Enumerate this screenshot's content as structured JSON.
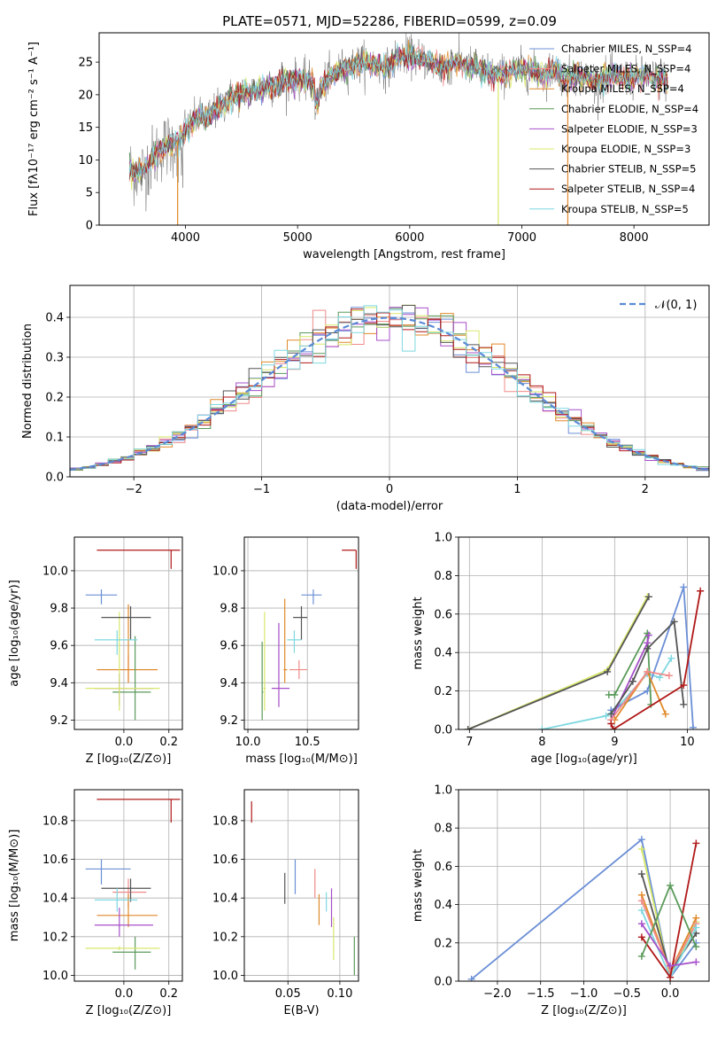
{
  "figure_title": "PLATE=0571, MJD=52286, FIBERID=0599, z=0.09",
  "colors": {
    "Chabrier MILES": "#6b8fd6",
    "Salpeter MILES": "#f08a8a",
    "Kroupa MILES": "#e0892a",
    "Chabrier ELODIE": "#5a9a5a",
    "Salpeter ELODIE": "#a64fc9",
    "Kroupa ELODIE": "#d8e86a",
    "Chabrier STELIB": "#555555",
    "Salpeter STELIB": "#b01818",
    "Kroupa STELIB": "#7ed8e0"
  },
  "chart_data": [
    {
      "id": "spectrum",
      "type": "line",
      "title": "PLATE=0571, MJD=52286, FIBERID=0599, z=0.09",
      "xlabel": "wavelength [Angstrom, rest frame]",
      "ylabel": "Flux [fλ10⁻¹⁷ erg cm⁻² s⁻¹ A⁻¹]",
      "xlim": [
        3230,
        8670
      ],
      "ylim": [
        0,
        29.5
      ],
      "xticks": [
        4000,
        5000,
        6000,
        7000,
        8000
      ],
      "yticks": [
        0,
        5,
        10,
        15,
        20,
        25
      ],
      "grid": false,
      "legend_position": "top-right",
      "legend": [
        {
          "name": "Chabrier MILES",
          "nssp": "N_SSP=4",
          "color": "#6b8fd6"
        },
        {
          "name": "Salpeter MILES",
          "nssp": "N_SSP=4",
          "color": "#f08a8a"
        },
        {
          "name": "Kroupa MILES",
          "nssp": "N_SSP=4",
          "color": "#e0892a"
        },
        {
          "name": "Chabrier ELODIE",
          "nssp": "N_SSP=4",
          "color": "#5a9a5a"
        },
        {
          "name": "Salpeter ELODIE",
          "nssp": "N_SSP=3",
          "color": "#a64fc9"
        },
        {
          "name": "Kroupa ELODIE",
          "nssp": "N_SSP=3",
          "color": "#d8e86a"
        },
        {
          "name": "Chabrier STELIB",
          "nssp": "N_SSP=5",
          "color": "#555555"
        },
        {
          "name": "Salpeter STELIB",
          "nssp": "N_SSP=4",
          "color": "#b01818"
        },
        {
          "name": "Kroupa STELIB",
          "nssp": "N_SSP=5",
          "color": "#7ed8e0"
        }
      ],
      "continuum": {
        "x": [
          3500,
          3600,
          3700,
          3800,
          3900,
          4000,
          4100,
          4200,
          4300,
          4400,
          4500,
          4600,
          4700,
          4800,
          4900,
          5000,
          5100,
          5200,
          5300,
          5400,
          5500,
          5600,
          5700,
          5800,
          5900,
          6000,
          6100,
          6200,
          6300,
          6400,
          6500,
          6600,
          6700,
          6800,
          6900,
          7000,
          7100,
          7200,
          7300,
          7400,
          7500,
          7600,
          7700,
          7800,
          7900,
          8000,
          8100,
          8200,
          8300
        ],
        "y": [
          8.5,
          8.0,
          10.0,
          12.0,
          12.5,
          14.0,
          16.5,
          16.5,
          18.0,
          19.5,
          20.0,
          20.5,
          21.0,
          21.5,
          22.0,
          22.5,
          22.0,
          21.0,
          23.0,
          24.0,
          24.5,
          25.0,
          24.5,
          24.0,
          26.0,
          26.0,
          25.5,
          25.0,
          24.0,
          25.0,
          24.5,
          24.0,
          23.5,
          23.0,
          23.5,
          24.0,
          23.5,
          23.0,
          24.0,
          22.5,
          23.0,
          22.5,
          22.0,
          23.0,
          22.5,
          22.5,
          23.0,
          22.5,
          22.0
        ]
      },
      "spike_lines": [
        {
          "x": 3930,
          "color": "#e0892a"
        },
        {
          "x": 6790,
          "color": "#d8e86a"
        },
        {
          "x": 7410,
          "color": "#e0892a"
        }
      ]
    },
    {
      "id": "residuals",
      "type": "line",
      "xlabel": "(data-model)/error",
      "ylabel": "Normed distribution",
      "xlim": [
        -2.5,
        2.5
      ],
      "ylim": [
        0,
        0.48
      ],
      "xticks": [
        -2,
        -1,
        0,
        1,
        2
      ],
      "yticks": [
        0.0,
        0.1,
        0.2,
        0.3,
        0.4
      ],
      "grid": true,
      "legend_position": "top-right",
      "reference_label": "𝒩(0, 1)",
      "reference_color": "#5a8ad6",
      "bin_width": 0.1
    },
    {
      "id": "age_vs_Z",
      "type": "scatter",
      "xlabel": "Z [log₁₀(Z/Z⊙)]",
      "ylabel": "age  [log₁₀(age/yr)]",
      "xlim": [
        -0.22,
        0.26
      ],
      "ylim": [
        9.15,
        10.18
      ],
      "xticks": [
        0.0,
        0.2
      ],
      "yticks": [
        9.2,
        9.4,
        9.6,
        9.8,
        10.0
      ],
      "grid": true,
      "points": [
        {
          "model": "Chabrier MILES",
          "x": -0.1,
          "xmin": -0.17,
          "xmax": -0.03,
          "y": 9.87,
          "ymin": 9.82,
          "ymax": 9.9
        },
        {
          "model": "Salpeter MILES",
          "x": 0.02,
          "xmin": -0.12,
          "xmax": 0.15,
          "y": 9.47,
          "ymin": 9.4,
          "ymax": 9.55
        },
        {
          "model": "Kroupa MILES",
          "x": 0.02,
          "xmin": -0.12,
          "xmax": 0.15,
          "y": 9.47,
          "ymin": 9.4,
          "ymax": 9.82
        },
        {
          "model": "Chabrier ELODIE",
          "x": 0.05,
          "xmin": -0.05,
          "xmax": 0.12,
          "y": 9.35,
          "ymin": 9.2,
          "ymax": 9.65
        },
        {
          "model": "Salpeter ELODIE",
          "x": -0.02,
          "xmin": -0.13,
          "xmax": 0.13,
          "y": 9.37,
          "ymin": 9.28,
          "ymax": 9.45
        },
        {
          "model": "Kroupa ELODIE",
          "x": -0.02,
          "xmin": -0.17,
          "xmax": 0.16,
          "y": 9.37,
          "ymin": 9.25,
          "ymax": 9.78
        },
        {
          "model": "Chabrier STELIB",
          "x": 0.03,
          "xmin": -0.1,
          "xmax": 0.12,
          "y": 9.75,
          "ymin": 9.63,
          "ymax": 9.81
        },
        {
          "model": "Salpeter STELIB",
          "x": 0.21,
          "xmin": -0.12,
          "xmax": 0.25,
          "y": 10.11,
          "ymin": 10.01,
          "ymax": 10.11
        },
        {
          "model": "Kroupa STELIB",
          "x": -0.03,
          "xmin": -0.13,
          "xmax": 0.06,
          "y": 9.63,
          "ymin": 9.55,
          "ymax": 9.68
        }
      ]
    },
    {
      "id": "age_vs_mass",
      "type": "scatter",
      "xlabel": "mass [log₁₀(M/M⊙)]",
      "ylabel": "",
      "xlim": [
        9.97,
        10.93
      ],
      "ylim": [
        9.15,
        10.18
      ],
      "xticks": [
        10.0,
        10.5
      ],
      "yticks": [
        9.2,
        9.4,
        9.6,
        9.8,
        10.0
      ],
      "grid": true,
      "points": [
        {
          "model": "Chabrier MILES",
          "x": 10.55,
          "xmin": 10.45,
          "xmax": 10.62,
          "y": 9.87,
          "ymin": 9.82,
          "ymax": 9.9
        },
        {
          "model": "Salpeter MILES",
          "x": 10.43,
          "xmin": 10.35,
          "xmax": 10.5,
          "y": 9.47,
          "ymin": 9.42,
          "ymax": 9.52
        },
        {
          "model": "Kroupa MILES",
          "x": 10.31,
          "xmin": 10.3,
          "xmax": 10.33,
          "y": 9.47,
          "ymin": 9.4,
          "ymax": 9.85
        },
        {
          "model": "Chabrier ELODIE",
          "x": 10.12,
          "xmin": 10.12,
          "xmax": 10.13,
          "y": 9.35,
          "ymin": 9.2,
          "ymax": 9.62
        },
        {
          "model": "Salpeter ELODIE",
          "x": 10.26,
          "xmin": 10.2,
          "xmax": 10.35,
          "y": 9.37,
          "ymin": 9.27,
          "ymax": 9.72
        },
        {
          "model": "Kroupa ELODIE",
          "x": 10.14,
          "xmin": 10.13,
          "xmax": 10.15,
          "y": 9.37,
          "ymin": 9.25,
          "ymax": 9.78
        },
        {
          "model": "Chabrier STELIB",
          "x": 10.45,
          "xmin": 10.38,
          "xmax": 10.5,
          "y": 9.75,
          "ymin": 9.63,
          "ymax": 9.81
        },
        {
          "model": "Salpeter STELIB",
          "x": 10.91,
          "xmin": 10.79,
          "xmax": 10.91,
          "y": 10.11,
          "ymin": 10.01,
          "ymax": 10.11
        },
        {
          "model": "Kroupa STELIB",
          "x": 10.39,
          "xmin": 10.33,
          "xmax": 10.45,
          "y": 9.63,
          "ymin": 9.56,
          "ymax": 9.68
        }
      ]
    },
    {
      "id": "mass_weight_vs_age",
      "type": "line",
      "xlabel": "age  [log₁₀(age/yr)]",
      "ylabel": "mass weight",
      "xlim": [
        6.85,
        10.3
      ],
      "ylim": [
        0,
        1.0
      ],
      "xticks": [
        7,
        8,
        9,
        10
      ],
      "yticks": [
        0.0,
        0.2,
        0.4,
        0.6,
        0.8,
        1.0
      ],
      "grid": true,
      "series": [
        {
          "model": "Kroupa ELODIE",
          "x": [
            6.98,
            8.9,
            9.45
          ],
          "y": [
            0.0,
            0.31,
            0.69
          ]
        },
        {
          "model": "Chabrier STELIB",
          "x": [
            6.98,
            8.9,
            9.47
          ],
          "y": [
            0.0,
            0.3,
            0.69
          ]
        },
        {
          "model": "Kroupa STELIB",
          "x": [
            8.0,
            8.88,
            9.05,
            9.45,
            9.62,
            9.78
          ],
          "y": [
            0.0,
            0.07,
            0.12,
            0.29,
            0.27,
            0.37
          ]
        },
        {
          "model": "Chabrier MILES",
          "x": [
            8.95,
            9.45,
            9.95,
            10.08
          ],
          "y": [
            0.1,
            0.2,
            0.74,
            0.01
          ]
        },
        {
          "model": "Chabrier ELODIE",
          "x": [
            8.92,
            9.0,
            9.45,
            9.5
          ],
          "y": [
            0.18,
            0.18,
            0.5,
            0.13
          ]
        },
        {
          "model": "Salpeter ELODIE",
          "x": [
            8.95,
            9.45,
            9.47
          ],
          "y": [
            0.05,
            0.45,
            0.49
          ]
        },
        {
          "model": "Kroupa MILES",
          "x": [
            9.0,
            9.45,
            9.7
          ],
          "y": [
            0.05,
            0.3,
            0.08
          ]
        },
        {
          "model": "Salpeter MILES",
          "x": [
            8.95,
            9.45,
            9.75
          ],
          "y": [
            0.05,
            0.3,
            0.28
          ]
        },
        {
          "model": "Chabrier STELIB",
          "x": [
            8.95,
            9.25,
            9.45,
            9.82,
            9.95
          ],
          "y": [
            0.08,
            0.25,
            0.42,
            0.56,
            0.13
          ]
        },
        {
          "model": "Salpeter STELIB",
          "x": [
            8.95,
            8.98,
            9.95,
            10.18
          ],
          "y": [
            0.03,
            0.0,
            0.23,
            0.72
          ]
        }
      ]
    },
    {
      "id": "mass_vs_Z",
      "type": "scatter",
      "xlabel": "Z [log₁₀(Z/Z⊙)]",
      "ylabel": "mass [log₁₀(M/M⊙)]",
      "xlim": [
        -0.22,
        0.26
      ],
      "ylim": [
        9.97,
        10.96
      ],
      "xticks": [
        0.0,
        0.2
      ],
      "yticks": [
        10.0,
        10.2,
        10.4,
        10.6,
        10.8
      ],
      "grid": true,
      "points": [
        {
          "model": "Chabrier MILES",
          "x": -0.1,
          "xmin": -0.17,
          "xmax": 0.03,
          "y": 10.55,
          "ymin": 10.47,
          "ymax": 10.6
        },
        {
          "model": "Salpeter MILES",
          "x": 0.02,
          "xmin": -0.05,
          "xmax": 0.1,
          "y": 10.43,
          "ymin": 10.35,
          "ymax": 10.5
        },
        {
          "model": "Kroupa MILES",
          "x": 0.02,
          "xmin": -0.12,
          "xmax": 0.15,
          "y": 10.31,
          "ymin": 10.25,
          "ymax": 10.42
        },
        {
          "model": "Chabrier ELODIE",
          "x": 0.05,
          "xmin": -0.05,
          "xmax": 0.12,
          "y": 10.12,
          "ymin": 10.03,
          "ymax": 10.2
        },
        {
          "model": "Salpeter ELODIE",
          "x": -0.02,
          "xmin": -0.13,
          "xmax": 0.13,
          "y": 10.26,
          "ymin": 10.2,
          "ymax": 10.35
        },
        {
          "model": "Kroupa ELODIE",
          "x": -0.02,
          "xmin": -0.17,
          "xmax": 0.16,
          "y": 10.14,
          "ymin": 10.13,
          "ymax": 10.15
        },
        {
          "model": "Chabrier STELIB",
          "x": 0.03,
          "xmin": -0.1,
          "xmax": 0.12,
          "y": 10.45,
          "ymin": 10.38,
          "ymax": 10.5
        },
        {
          "model": "Salpeter STELIB",
          "x": 0.21,
          "xmin": -0.12,
          "xmax": 0.25,
          "y": 10.91,
          "ymin": 10.79,
          "ymax": 10.91
        },
        {
          "model": "Kroupa STELIB",
          "x": -0.03,
          "xmin": -0.13,
          "xmax": 0.06,
          "y": 10.39,
          "ymin": 10.33,
          "ymax": 10.45
        }
      ]
    },
    {
      "id": "mass_vs_ebv",
      "type": "scatter",
      "xlabel": "E(B-V)",
      "ylabel": "",
      "xlim": [
        0.008,
        0.118
      ],
      "ylim": [
        9.97,
        10.96
      ],
      "xticks": [
        0.05,
        0.1
      ],
      "yticks": [
        10.0,
        10.2,
        10.4,
        10.6,
        10.8
      ],
      "grid": true,
      "points": [
        {
          "model": "Salpeter STELIB",
          "x": 0.015,
          "ymin": 10.79,
          "ymax": 10.9
        },
        {
          "model": "Chabrier STELIB",
          "x": 0.047,
          "ymin": 10.37,
          "ymax": 10.53
        },
        {
          "model": "Chabrier MILES",
          "x": 0.057,
          "ymin": 10.42,
          "ymax": 10.6
        },
        {
          "model": "Salpeter MILES",
          "x": 0.076,
          "ymin": 10.4,
          "ymax": 10.55
        },
        {
          "model": "Kroupa MILES",
          "x": 0.08,
          "ymin": 10.26,
          "ymax": 10.42
        },
        {
          "model": "Kroupa STELIB",
          "x": 0.087,
          "ymin": 10.33,
          "ymax": 10.43
        },
        {
          "model": "Salpeter ELODIE",
          "x": 0.092,
          "ymin": 10.25,
          "ymax": 10.45
        },
        {
          "model": "Kroupa ELODIE",
          "x": 0.094,
          "ymin": 10.08,
          "ymax": 10.3
        },
        {
          "model": "Chabrier ELODIE",
          "x": 0.114,
          "ymin": 10.0,
          "ymax": 10.2
        }
      ]
    },
    {
      "id": "mass_weight_vs_Z",
      "type": "line",
      "xlabel": "Z [log₁₀(Z/Z⊙)]",
      "ylabel": "mass weight",
      "xlim": [
        -2.45,
        0.45
      ],
      "ylim": [
        0,
        1.0
      ],
      "xticks": [
        -2.0,
        -1.5,
        -1.0,
        -0.5,
        0.0
      ],
      "yticks": [
        0.0,
        0.2,
        0.4,
        0.6,
        0.8,
        1.0
      ],
      "grid": true,
      "series": [
        {
          "model": "Chabrier MILES",
          "x": [
            -2.3,
            -0.33,
            0.0,
            0.3
          ],
          "y": [
            0.01,
            0.74,
            0.02,
            0.2
          ]
        },
        {
          "model": "Kroupa ELODIE",
          "x": [
            -0.33,
            0.0,
            0.3
          ],
          "y": [
            0.69,
            0.02,
            0.31
          ]
        },
        {
          "model": "Chabrier STELIB",
          "x": [
            -0.33,
            0.0,
            0.3
          ],
          "y": [
            0.56,
            0.05,
            0.25
          ]
        },
        {
          "model": "Kroupa MILES",
          "x": [
            -0.33,
            0.0,
            0.3
          ],
          "y": [
            0.45,
            0.05,
            0.33
          ]
        },
        {
          "model": "Salpeter MILES",
          "x": [
            -0.33,
            0.0,
            0.3
          ],
          "y": [
            0.42,
            0.05,
            0.3
          ]
        },
        {
          "model": "Kroupa STELIB",
          "x": [
            -0.33,
            0.0,
            0.3
          ],
          "y": [
            0.37,
            0.02,
            0.28
          ]
        },
        {
          "model": "Salpeter STELIB",
          "x": [
            -0.33,
            0.0,
            0.3
          ],
          "y": [
            0.23,
            0.02,
            0.72
          ]
        },
        {
          "model": "Chabrier ELODIE",
          "x": [
            -0.33,
            0.0,
            0.3
          ],
          "y": [
            0.13,
            0.5,
            0.18
          ]
        },
        {
          "model": "Salpeter ELODIE",
          "x": [
            -0.33,
            0.0,
            0.3
          ],
          "y": [
            0.3,
            0.08,
            0.1
          ]
        }
      ]
    }
  ]
}
